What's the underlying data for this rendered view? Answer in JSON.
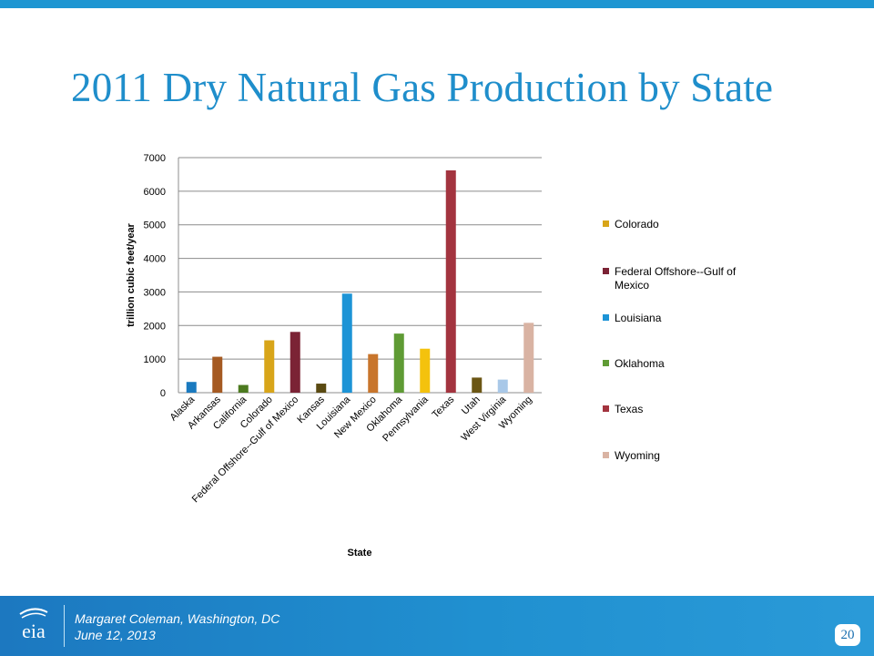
{
  "slide": {
    "title": "2011 Dry Natural Gas Production by State",
    "footer_line1": "Margaret Coleman, Washington, DC",
    "footer_line2": "June 12, 2013",
    "page_number": "20",
    "logo_text": "eia",
    "accent_color": "#1f8ecb"
  },
  "chart_data": {
    "type": "bar",
    "title": "",
    "xlabel": "State",
    "ylabel": "trillion cubic feet/year",
    "ylim": [
      0,
      7000
    ],
    "yticks": [
      0,
      1000,
      2000,
      3000,
      4000,
      5000,
      6000,
      7000
    ],
    "grid": true,
    "legend_position": "right",
    "categories": [
      "Alaska",
      "Arkansas",
      "California",
      "Colorado",
      "Federal Offshore--Gulf of Mexico",
      "Kansas",
      "Louisiana",
      "New Mexico",
      "Oklahoma",
      "Pennsylvania",
      "Texas",
      "Utah",
      "West Virginia",
      "Wyoming"
    ],
    "values": [
      320,
      1070,
      230,
      1560,
      1810,
      270,
      2950,
      1150,
      1760,
      1310,
      6620,
      450,
      390,
      2080
    ],
    "colors": [
      "#1a7abf",
      "#a55a22",
      "#4c7a1f",
      "#d8a519",
      "#7b2335",
      "#5a4a12",
      "#1d94d6",
      "#c8752c",
      "#5f9b34",
      "#f4c20d",
      "#a3343f",
      "#6b5614",
      "#a9c8e8",
      "#d9b3a3"
    ],
    "legend": [
      {
        "label": "Colorado",
        "color": "#d8a519"
      },
      {
        "label": "Federal Offshore--Gulf of Mexico",
        "color": "#7b2335"
      },
      {
        "label": "Louisiana",
        "color": "#1d94d6"
      },
      {
        "label": "Oklahoma",
        "color": "#5f9b34"
      },
      {
        "label": "Texas",
        "color": "#a3343f"
      },
      {
        "label": "Wyoming",
        "color": "#d9b3a3"
      }
    ]
  }
}
